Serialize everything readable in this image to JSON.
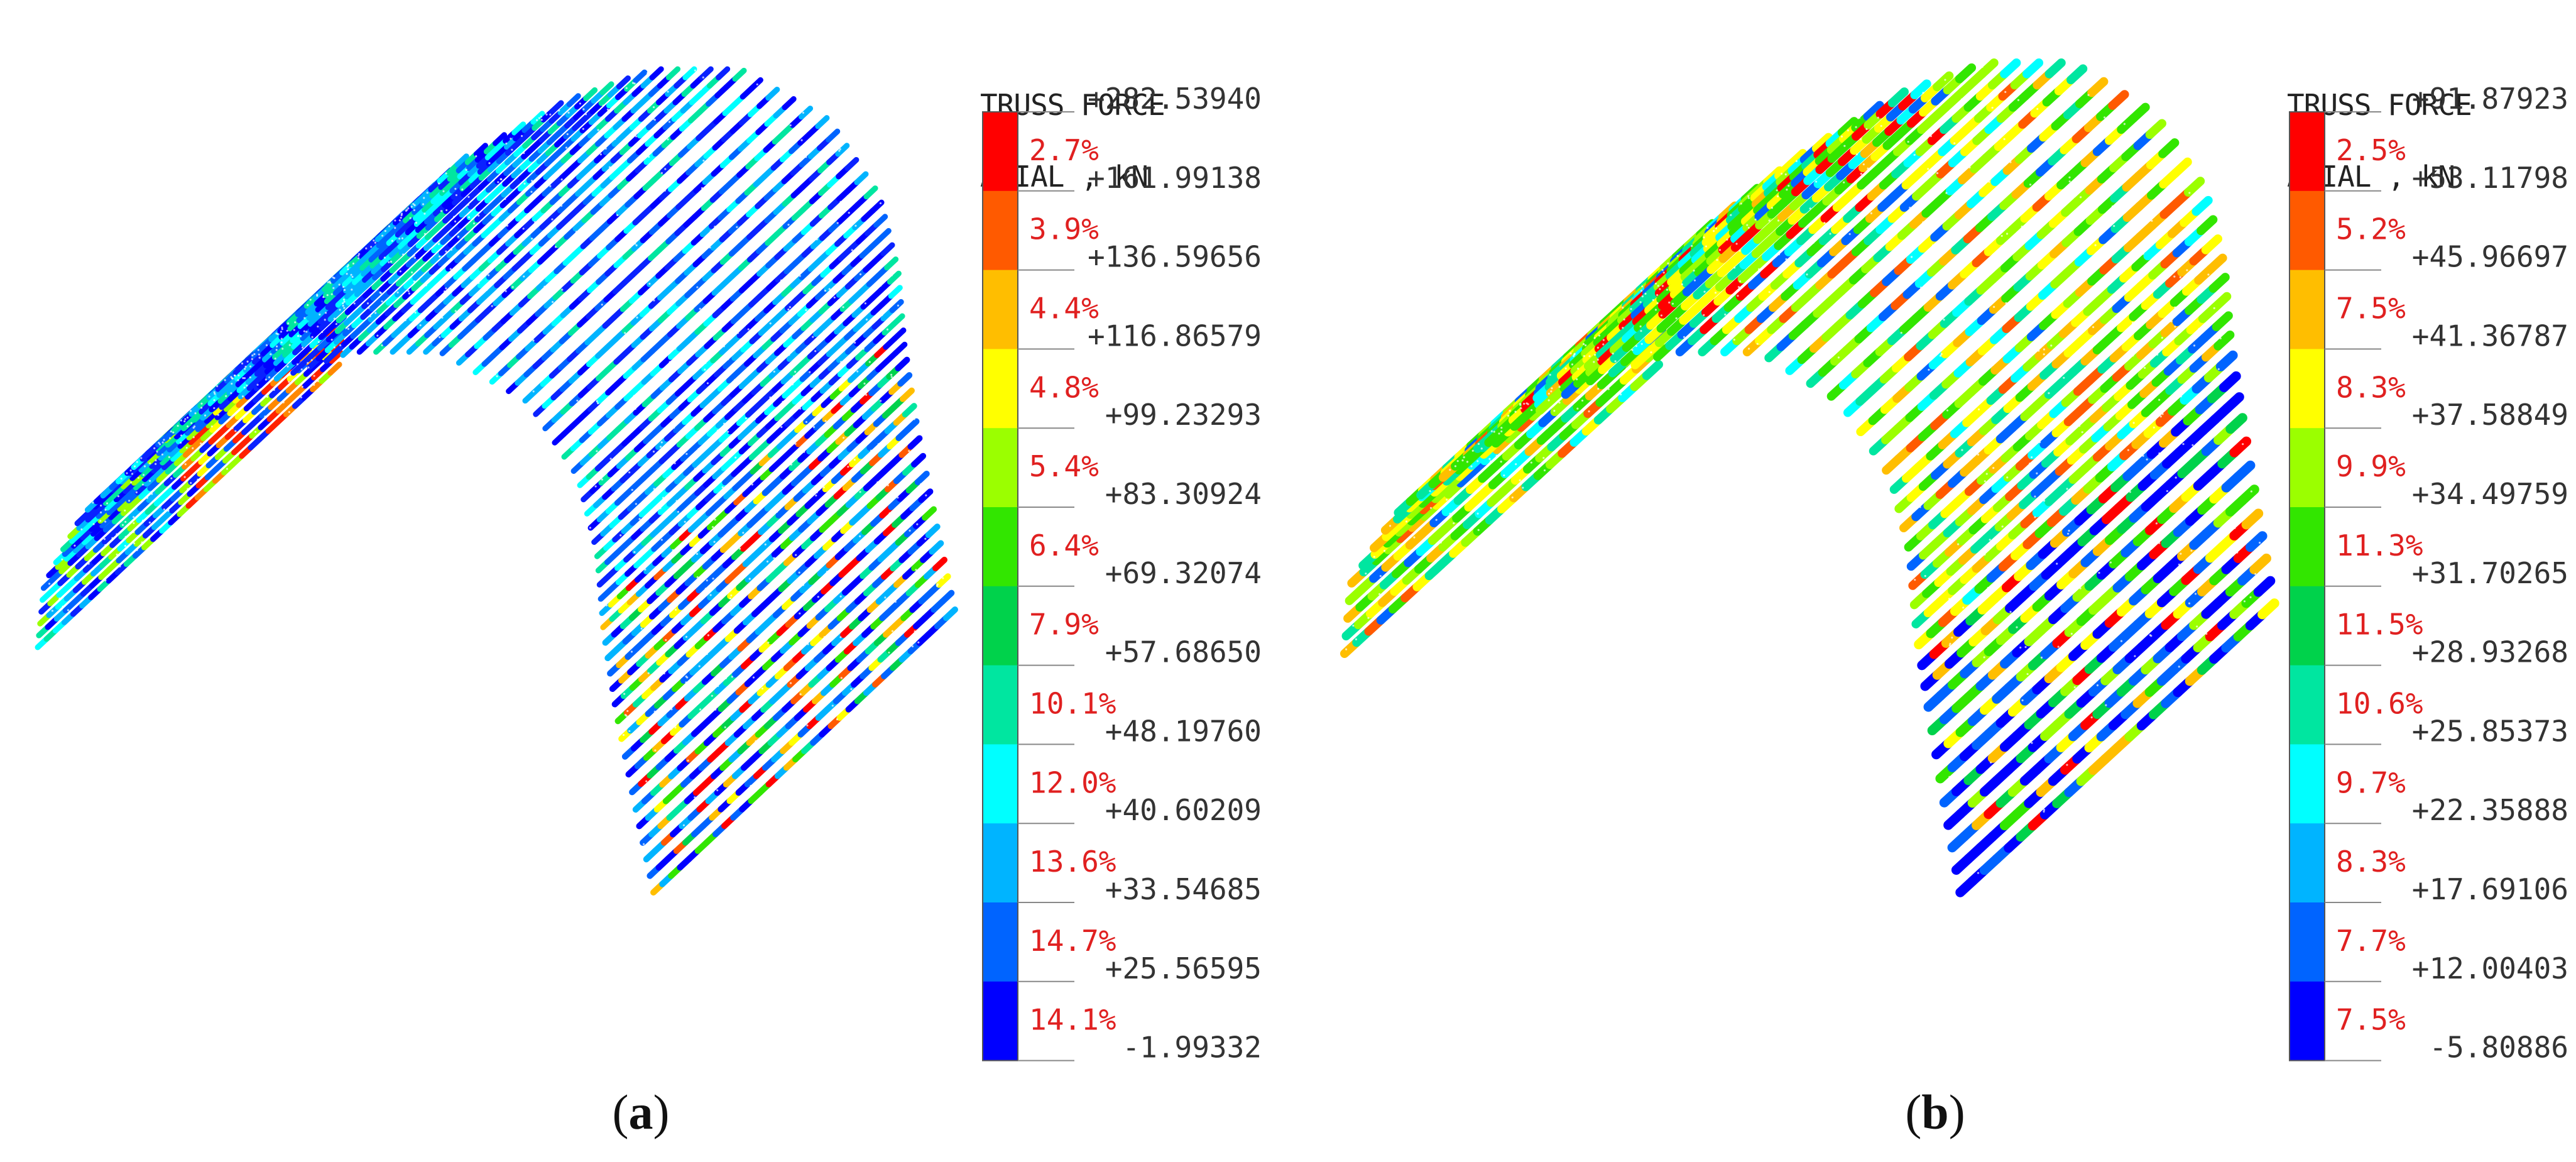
{
  "panels": [
    {
      "id": "a",
      "legend_title_line1": "TRUSS FORCE",
      "legend_title_line2": "AXIAL , kN",
      "caption_label": "a",
      "levels": [
        "+282.53940",
        "+161.99138",
        "+136.59656",
        "+116.86579",
        "+99.23293",
        "+83.30924",
        "+69.32074",
        "+57.68650",
        "+48.19760",
        "+40.60209",
        "+33.54685",
        "+25.56595",
        "-1.99332"
      ],
      "percents": [
        "2.7%",
        "3.9%",
        "4.4%",
        "4.8%",
        "5.4%",
        "6.4%",
        "7.9%",
        "10.1%",
        "12.0%",
        "13.6%",
        "14.7%",
        "14.1%"
      ]
    },
    {
      "id": "b",
      "legend_title_line1": "TRUSS FORCE",
      "legend_title_line2": "AXIAL , kN",
      "caption_label": "b",
      "levels": [
        "+91.87923",
        "+53.11798",
        "+45.96697",
        "+41.36787",
        "+37.58849",
        "+34.49759",
        "+31.70265",
        "+28.93268",
        "+25.85373",
        "+22.35888",
        "+17.69106",
        "+12.00403",
        "-5.80886"
      ],
      "percents": [
        "2.5%",
        "5.2%",
        "7.5%",
        "8.3%",
        "9.9%",
        "11.3%",
        "11.5%",
        "10.6%",
        "9.7%",
        "8.3%",
        "7.7%",
        "7.5%"
      ]
    }
  ],
  "colors": {
    "bands_top_to_bottom": [
      "#ff0000",
      "#ff5a00",
      "#ffbe00",
      "#ffff00",
      "#9bff00",
      "#32e600",
      "#00d24b",
      "#00e6a0",
      "#00ffff",
      "#00b4ff",
      "#0064ff",
      "#0000ff"
    ],
    "percent_text": "#e02020",
    "level_text": "#333333"
  }
}
